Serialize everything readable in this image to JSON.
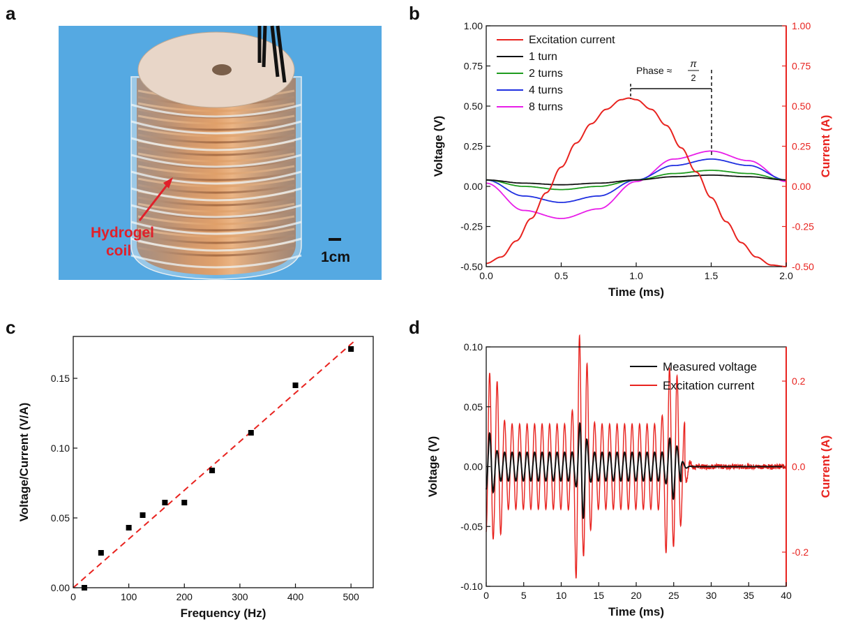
{
  "panels": {
    "a": {
      "letter": "a",
      "annotation": [
        "Hydrogel",
        "coil"
      ],
      "scale_bar_label": "1cm",
      "annotation_color": "#e0202a"
    },
    "b": {
      "letter": "b",
      "phase_label": "Phase ≈",
      "phase_num": "π",
      "phase_den": "2"
    },
    "c": {
      "letter": "c"
    },
    "d": {
      "letter": "d"
    }
  },
  "chart_data": [
    {
      "id": "b",
      "type": "line",
      "xlabel": "Time (ms)",
      "ylabel": "Voltage (V)",
      "y2label": "Current (A)",
      "xlim": [
        0.0,
        2.0
      ],
      "ylim": [
        -0.5,
        1.0
      ],
      "y2lim": [
        -0.5,
        1.0
      ],
      "xticks": [
        "0.0",
        "0.5",
        "1.0",
        "1.5",
        "2.0"
      ],
      "yticks": [
        "-0.50",
        "-0.25",
        "0.00",
        "0.25",
        "0.50",
        "0.75",
        "1.00"
      ],
      "y2ticks": [
        "-0.50",
        "-0.25",
        "0.00",
        "0.25",
        "0.50",
        "0.75",
        "1.00"
      ],
      "legend_position": "top-left",
      "colors": {
        "current_axis": "#e8231f"
      },
      "series": [
        {
          "name": "Excitation current",
          "color": "#e8231f",
          "axis": "right",
          "x": [
            0.0,
            0.1,
            0.2,
            0.3,
            0.4,
            0.5,
            0.6,
            0.7,
            0.8,
            0.9,
            0.95,
            1.0,
            1.1,
            1.2,
            1.3,
            1.4,
            1.5,
            1.6,
            1.7,
            1.8,
            1.9,
            2.0
          ],
          "y": [
            -0.48,
            -0.44,
            -0.34,
            -0.2,
            -0.04,
            0.12,
            0.27,
            0.39,
            0.48,
            0.54,
            0.55,
            0.54,
            0.48,
            0.38,
            0.24,
            0.09,
            -0.07,
            -0.22,
            -0.35,
            -0.44,
            -0.49,
            -0.5
          ]
        },
        {
          "name": "1 turn",
          "color": "#111111",
          "axis": "left",
          "x": [
            0.0,
            0.25,
            0.5,
            0.75,
            1.0,
            1.25,
            1.5,
            1.75,
            2.0
          ],
          "y": [
            0.04,
            0.02,
            0.01,
            0.02,
            0.04,
            0.06,
            0.07,
            0.06,
            0.04
          ]
        },
        {
          "name": "2 turns",
          "color": "#1e9b1e",
          "axis": "left",
          "x": [
            0.0,
            0.25,
            0.5,
            0.75,
            1.0,
            1.25,
            1.5,
            1.75,
            2.0
          ],
          "y": [
            0.04,
            0.0,
            -0.02,
            0.0,
            0.04,
            0.08,
            0.1,
            0.08,
            0.04
          ]
        },
        {
          "name": "4 turns",
          "color": "#1f2fe0",
          "axis": "left",
          "x": [
            0.0,
            0.25,
            0.5,
            0.75,
            1.0,
            1.25,
            1.5,
            1.75,
            2.0
          ],
          "y": [
            0.04,
            -0.06,
            -0.1,
            -0.06,
            0.04,
            0.13,
            0.17,
            0.13,
            0.04
          ]
        },
        {
          "name": "8 turns",
          "color": "#e81ee8",
          "axis": "left",
          "x": [
            0.0,
            0.25,
            0.5,
            0.75,
            1.0,
            1.25,
            1.5,
            1.75,
            2.0
          ],
          "y": [
            0.02,
            -0.15,
            -0.2,
            -0.14,
            0.03,
            0.17,
            0.22,
            0.16,
            0.03
          ]
        }
      ]
    },
    {
      "id": "c",
      "type": "scatter",
      "xlabel": "Frequency (Hz)",
      "ylabel": "Voltage/Current (V/A)",
      "xlim": [
        0,
        540
      ],
      "ylim": [
        0,
        0.18
      ],
      "xticks": [
        "0",
        "100",
        "200",
        "300",
        "400",
        "500"
      ],
      "yticks": [
        "0.00",
        "0.05",
        "0.10",
        "0.15"
      ],
      "points": {
        "x": [
          20,
          50,
          100,
          125,
          165,
          200,
          250,
          320,
          400,
          500
        ],
        "y": [
          0.0,
          0.025,
          0.043,
          0.052,
          0.061,
          0.061,
          0.084,
          0.111,
          0.145,
          0.171
        ]
      },
      "fit_line": {
        "x": [
          0,
          510
        ],
        "y": [
          0.0,
          0.178
        ],
        "color": "#e8231f",
        "style": "dashed"
      },
      "marker_color": "#000000"
    },
    {
      "id": "d",
      "type": "line",
      "xlabel": "Time (ms)",
      "ylabel": "Voltage (V)",
      "y2label": "Current (A)",
      "xlim": [
        0,
        40
      ],
      "ylim": [
        -0.1,
        0.1
      ],
      "y2lim": [
        -0.28,
        0.28
      ],
      "xticks": [
        "0",
        "5",
        "10",
        "15",
        "20",
        "25",
        "30",
        "35",
        "40"
      ],
      "yticks": [
        "-0.10",
        "-0.05",
        "0.00",
        "0.05",
        "0.10"
      ],
      "y2ticks": [
        "-0.2",
        "0.0",
        "0.2"
      ],
      "legend_position": "top-right",
      "colors": {
        "current_axis": "#e8231f"
      },
      "series": [
        {
          "name": "Measured voltage",
          "color": "#111111",
          "axis": "left",
          "oscillation_period_ms": 1.0,
          "pulse_end_ms": 26.0,
          "peak_times_ms": [
            0.5,
            12.8,
            24.8
          ],
          "peak_amplitude": [
            0.028,
            0.045,
            0.028
          ],
          "base_amplitude": 0.012
        },
        {
          "name": "Excitation current",
          "color": "#e8231f",
          "axis": "right",
          "oscillation_period_ms": 1.0,
          "pulse_end_ms": 26.5,
          "peak_times_ms": [
            0.5,
            1.5,
            12.3,
            13.3,
            24.3,
            25.3
          ],
          "peak_amplitude": [
            0.22,
            0.2,
            0.32,
            0.25,
            0.24,
            0.22
          ],
          "base_amplitude": 0.1,
          "noise_after_ms": 0.012
        }
      ]
    }
  ]
}
